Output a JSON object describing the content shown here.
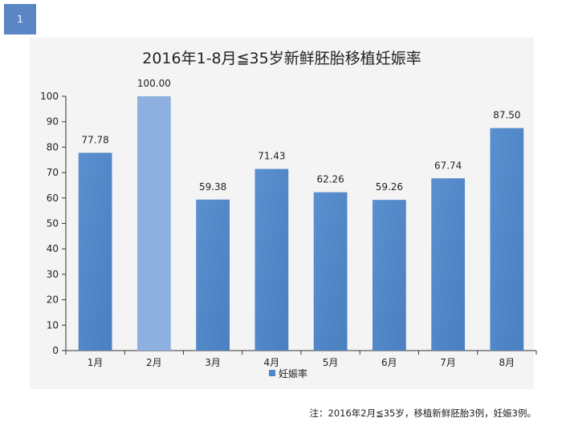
{
  "badge": {
    "label": "1"
  },
  "chart_data": {
    "type": "bar",
    "title": "2016年1-8月≦35岁新鲜胚胎移植妊娠率",
    "categories": [
      "1月",
      "2月",
      "3月",
      "4月",
      "5月",
      "6月",
      "7月",
      "8月"
    ],
    "series": [
      {
        "name": "妊娠率",
        "values": [
          77.78,
          100.0,
          59.38,
          71.43,
          62.26,
          59.26,
          67.74,
          87.5
        ],
        "value_labels": [
          "77.78",
          "100.00",
          "59.38",
          "71.43",
          "62.26",
          "59.26",
          "67.74",
          "87.50"
        ]
      }
    ],
    "ylim": [
      0,
      100
    ],
    "yticks": [
      0,
      10,
      20,
      30,
      40,
      50,
      60,
      70,
      80,
      90,
      100
    ],
    "xlabel": "",
    "ylabel": "",
    "grid": false,
    "legend": "bottom",
    "highlight_index": 1,
    "colors": {
      "bar": "#4f86c6",
      "bar_highlight": "#8eb0e0",
      "axis": "#333333",
      "text": "#222222"
    }
  },
  "footnote": "注：2016年2月≦35岁，移植新鲜胚胎3例，妊娠3例。"
}
